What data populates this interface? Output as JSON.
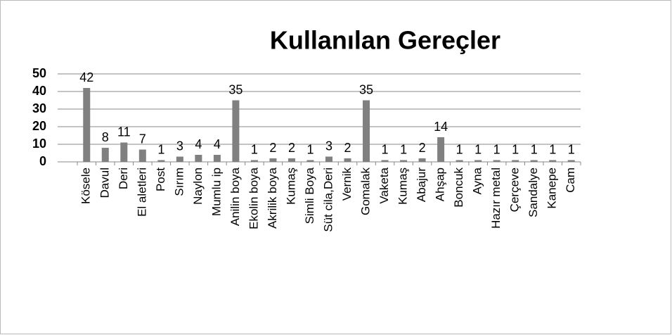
{
  "chart_data": {
    "type": "bar",
    "title": "Kullanılan Gereçler",
    "categories": [
      "Kösele",
      "Davul",
      "Deri",
      "El aletleri",
      "Post",
      "Sırım",
      "Naylon",
      "Mumlu ip",
      "Anilin boya",
      "Ekolin boya",
      "Akrilik boya",
      "Kumaş",
      "Simli Boya",
      "Süt cila,Deri",
      "Vernik",
      "Gomalak",
      "Vaketa",
      "Kumaş",
      "Abajur",
      "Ahşap",
      "Boncuk",
      "Ayna",
      "Hazır metal",
      "Çerçeve",
      "Sandalye",
      "Kanepe",
      "Cam"
    ],
    "values": [
      42,
      8,
      11,
      7,
      1,
      3,
      4,
      4,
      35,
      1,
      2,
      2,
      1,
      3,
      2,
      35,
      1,
      1,
      2,
      14,
      1,
      1,
      1,
      1,
      1,
      1,
      1
    ],
    "color": "#808080",
    "ylim": [
      0,
      50
    ],
    "yticks": [
      0,
      10,
      20,
      30,
      40,
      50
    ],
    "grid": true
  }
}
